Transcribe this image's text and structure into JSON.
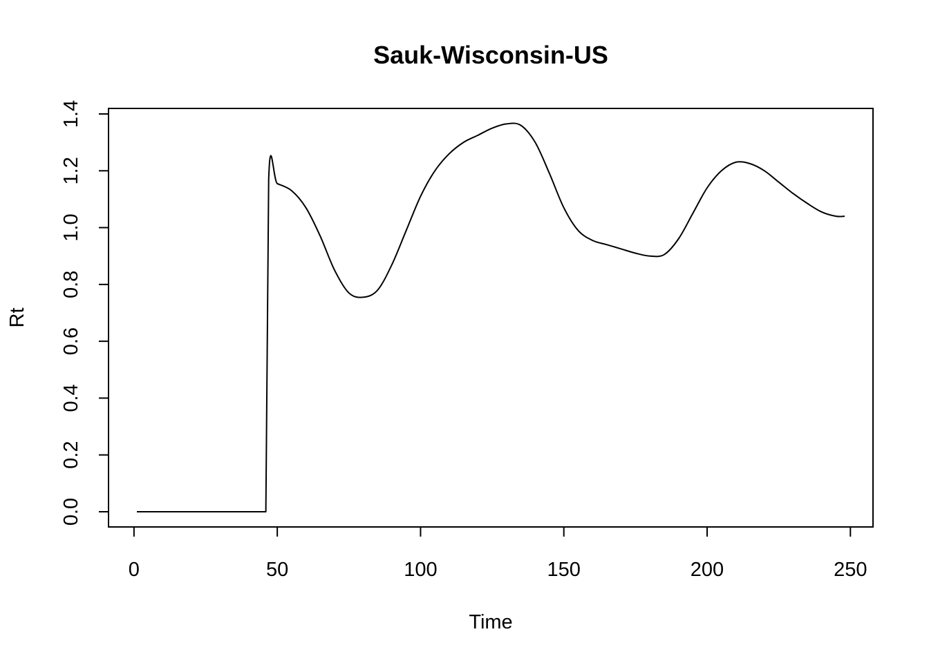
{
  "chart_data": {
    "type": "line",
    "title": "Sauk-Wisconsin-US",
    "xlabel": "Time",
    "ylabel": "Rt",
    "xlim": [
      1,
      248
    ],
    "ylim": [
      0,
      1.4
    ],
    "xticks": [
      0,
      50,
      100,
      150,
      200,
      250
    ],
    "xtick_labels": [
      "0",
      "50",
      "100",
      "150",
      "200",
      "250"
    ],
    "yticks": [
      0,
      0.2,
      0.4,
      0.6,
      0.8,
      1.0,
      1.2,
      1.4
    ],
    "ytick_labels": [
      "0.0",
      "0.2",
      "0.4",
      "0.6",
      "0.8",
      "1.0",
      "1.2",
      "1.4"
    ],
    "grid": false,
    "series": [
      {
        "color": "#000000",
        "x": [
          1,
          46,
          47,
          50,
          55,
          60,
          65,
          70,
          75,
          80,
          85,
          90,
          95,
          100,
          105,
          110,
          115,
          120,
          125,
          130,
          135,
          140,
          145,
          150,
          155,
          160,
          165,
          170,
          175,
          180,
          185,
          190,
          195,
          200,
          205,
          210,
          215,
          220,
          225,
          230,
          235,
          240,
          245,
          248
        ],
        "y": [
          0,
          0,
          1.17,
          1.155,
          1.13,
          1.07,
          0.97,
          0.85,
          0.77,
          0.755,
          0.78,
          0.87,
          0.99,
          1.11,
          1.2,
          1.26,
          1.3,
          1.325,
          1.35,
          1.365,
          1.36,
          1.3,
          1.19,
          1.07,
          0.99,
          0.955,
          0.94,
          0.925,
          0.91,
          0.9,
          0.905,
          0.96,
          1.05,
          1.14,
          1.2,
          1.23,
          1.225,
          1.2,
          1.16,
          1.12,
          1.085,
          1.055,
          1.04,
          1.04
        ]
      }
    ]
  }
}
